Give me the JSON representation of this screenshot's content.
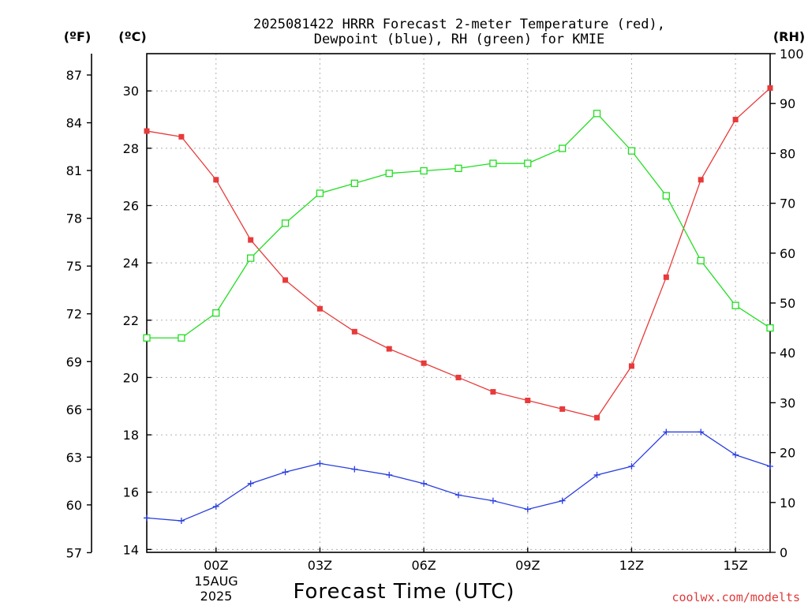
{
  "chart_data": {
    "type": "line",
    "title": "2025081422 HRRR Forecast 2-meter Temperature (red),",
    "subtitle": "Dewpoint (blue), RH (green) for KMIE",
    "xlabel": "Forecast Time (UTC)",
    "credit": "coolwx.com/modelts",
    "credit_color": "#e03a3a",
    "left_outer_unit": "(ºF)",
    "left_inner_unit": "(ºC)",
    "right_unit": "(RH)",
    "x_ticks": [
      {
        "hour": 0,
        "label": "00Z"
      },
      {
        "hour": 3,
        "label": "03Z"
      },
      {
        "hour": 6,
        "label": "06Z"
      },
      {
        "hour": 9,
        "label": "09Z"
      },
      {
        "hour": 12,
        "label": "12Z"
      },
      {
        "hour": 15,
        "label": "15Z"
      }
    ],
    "date_label_day": "15AUG",
    "date_label_year": "2025",
    "x_range_hours": [
      -2,
      16
    ],
    "celsius_ticks": [
      "14",
      "16",
      "18",
      "20",
      "22",
      "24",
      "26",
      "28",
      "30"
    ],
    "fahrenheit_ticks": [
      "57",
      "60",
      "63",
      "66",
      "69",
      "72",
      "75",
      "78",
      "81",
      "84",
      "87"
    ],
    "rh_ticks": [
      "0",
      "10",
      "20",
      "30",
      "40",
      "50",
      "60",
      "70",
      "80",
      "90",
      "100"
    ],
    "celsius_range": [
      13.9,
      31.3
    ],
    "rh_range": [
      0,
      100
    ],
    "grid": true,
    "x_hours": [
      -2,
      -1,
      0,
      1,
      2,
      3,
      4,
      5,
      6,
      7,
      8,
      9,
      10,
      11,
      12,
      13,
      14,
      15,
      16
    ],
    "series": [
      {
        "name": "2-meter Temperature",
        "color": "#e83a3a",
        "marker": "filled-square",
        "unit": "C",
        "values": [
          28.6,
          28.4,
          26.9,
          24.8,
          23.4,
          22.4,
          21.6,
          21.0,
          20.5,
          20.0,
          19.5,
          19.2,
          18.9,
          18.6,
          20.4,
          23.5,
          26.9,
          29.0,
          30.1
        ]
      },
      {
        "name": "Dewpoint",
        "color": "#2a3fe0",
        "marker": "plus",
        "unit": "C",
        "values": [
          15.1,
          15.0,
          15.5,
          16.3,
          16.7,
          17.0,
          16.8,
          16.6,
          16.3,
          15.9,
          15.7,
          15.4,
          15.7,
          16.6,
          16.9,
          18.1,
          18.1,
          17.3,
          16.9
        ]
      },
      {
        "name": "RH",
        "color": "#22dd22",
        "marker": "open-square",
        "unit": "%",
        "values": [
          43,
          43,
          48,
          59,
          66,
          72,
          74,
          76,
          76.5,
          77,
          78,
          78,
          81,
          88,
          80.5,
          71.5,
          58.5,
          49.5,
          45
        ]
      }
    ]
  }
}
